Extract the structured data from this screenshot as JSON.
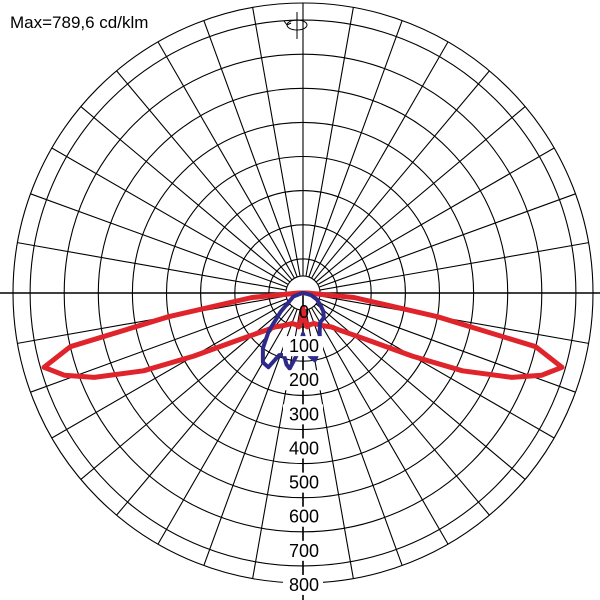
{
  "header": {
    "max_label": "Max=789,6 cd/klm"
  },
  "chart_data": {
    "type": "polar",
    "unit": "cd/klm",
    "max_value": 789.6,
    "r_ticks": [
      0,
      100,
      200,
      300,
      400,
      500,
      600,
      700,
      800
    ],
    "r_tick_labels": [
      "0",
      "100",
      "200",
      "300",
      "400",
      "500",
      "600",
      "700",
      "800"
    ],
    "r_max": 850,
    "angle_step_deg": 10,
    "nadir": "down",
    "series": [
      {
        "color": "#e0242b",
        "points": [
          [
            -90,
            12
          ],
          [
            -85,
            150
          ],
          [
            -80,
            400
          ],
          [
            -77,
            700
          ],
          [
            -74,
            789.6
          ],
          [
            -71,
            740
          ],
          [
            -68,
            660
          ],
          [
            -64,
            520
          ],
          [
            -60,
            370
          ],
          [
            -55,
            250
          ],
          [
            -50,
            190
          ],
          [
            -45,
            155
          ],
          [
            -40,
            130
          ],
          [
            -30,
            110
          ],
          [
            -20,
            95
          ],
          [
            -12,
            95
          ],
          [
            -7,
            100
          ],
          [
            -4,
            80
          ],
          [
            0,
            45
          ],
          [
            4,
            80
          ],
          [
            7,
            100
          ],
          [
            12,
            95
          ],
          [
            20,
            95
          ],
          [
            30,
            110
          ],
          [
            40,
            130
          ],
          [
            45,
            155
          ],
          [
            50,
            190
          ],
          [
            55,
            250
          ],
          [
            60,
            370
          ],
          [
            64,
            520
          ],
          [
            68,
            660
          ],
          [
            71,
            740
          ],
          [
            74,
            789.6
          ],
          [
            77,
            700
          ],
          [
            80,
            400
          ],
          [
            85,
            150
          ],
          [
            90,
            12
          ]
        ]
      },
      {
        "color": "#2e2a8c",
        "points": [
          [
            -90,
            2
          ],
          [
            -70,
            30
          ],
          [
            -50,
            85
          ],
          [
            -42,
            150
          ],
          [
            -36,
            200
          ],
          [
            -30,
            235
          ],
          [
            -25,
            240
          ],
          [
            -21,
            195
          ],
          [
            -17,
            190
          ],
          [
            -13,
            215
          ],
          [
            -10,
            225
          ],
          [
            -6,
            185
          ],
          [
            -3,
            150
          ],
          [
            0,
            120
          ],
          [
            3,
            150
          ],
          [
            6,
            185
          ],
          [
            10,
            200
          ],
          [
            14,
            180
          ],
          [
            19,
            150
          ],
          [
            24,
            120
          ],
          [
            30,
            100
          ],
          [
            40,
            95
          ],
          [
            48,
            80
          ],
          [
            56,
            60
          ],
          [
            65,
            45
          ],
          [
            75,
            25
          ],
          [
            90,
            2
          ]
        ]
      }
    ]
  }
}
